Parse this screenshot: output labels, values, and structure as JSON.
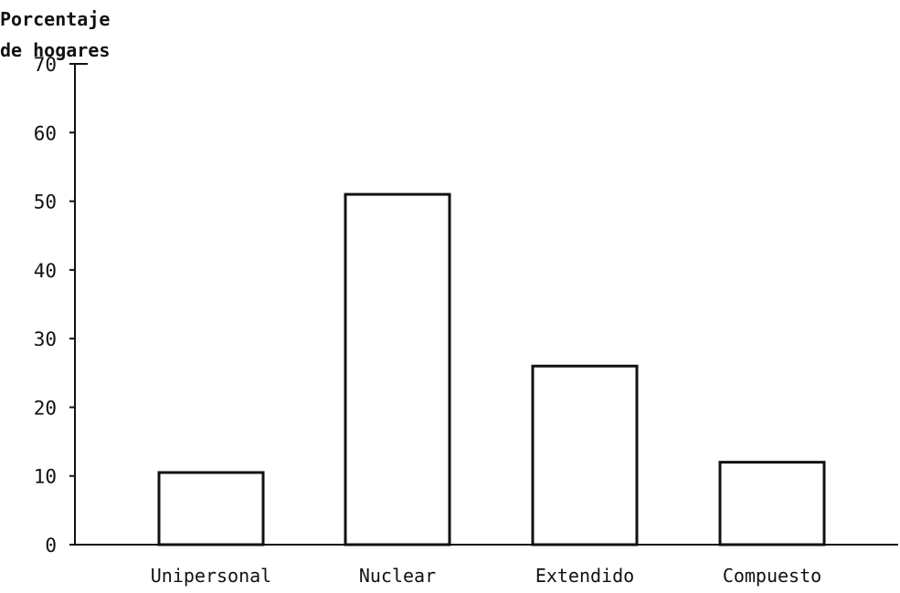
{
  "chart_data": {
    "type": "bar",
    "ylabel_lines": [
      "Porcentaje",
      "de hogares"
    ],
    "xlabel": "",
    "categories": [
      "Unipersonal",
      "Nuclear",
      "Extendido",
      "Compuesto"
    ],
    "values": [
      10.5,
      51,
      26,
      12
    ],
    "ylim": [
      0,
      70
    ],
    "yticks": [
      0,
      10,
      20,
      30,
      40,
      50,
      60,
      70
    ],
    "grid": false,
    "bar_fill": "#ffffff",
    "stroke_color": "#111111"
  }
}
